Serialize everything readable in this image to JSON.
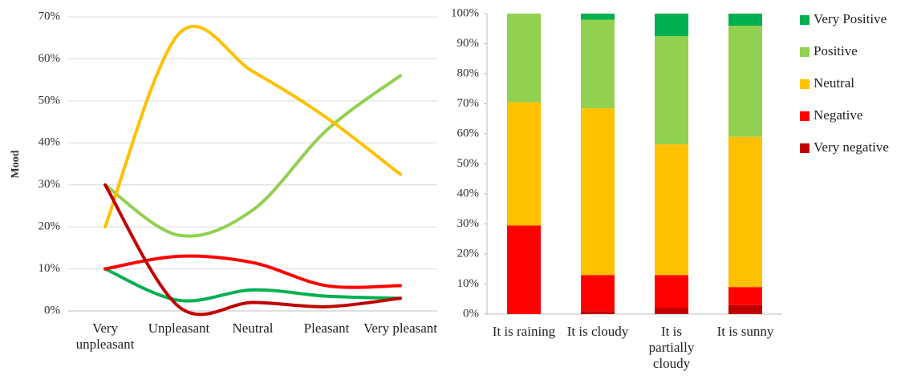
{
  "chart_data": [
    {
      "type": "line",
      "ylabel": "Mood",
      "categories": [
        "Very unpleasant",
        "Unpleasant",
        "Neutral",
        "Pleasant",
        "Very pleasant"
      ],
      "series": [
        {
          "color": "#00B050",
          "values": [
            10,
            2.5,
            5,
            3.5,
            3
          ]
        },
        {
          "color": "#92D050",
          "values": [
            30,
            18,
            24,
            43,
            56
          ]
        },
        {
          "color": "#FFC000",
          "values": [
            20,
            66,
            57,
            46,
            32.5
          ]
        },
        {
          "color": "#FF0000",
          "values": [
            10,
            13,
            11.5,
            6,
            6
          ]
        },
        {
          "color": "#C00000",
          "values": [
            30,
            1,
            2,
            1,
            3
          ]
        }
      ],
      "ylim": [
        0,
        70
      ],
      "yticks": [
        {
          "value": 0,
          "label": "0%"
        },
        {
          "value": 10,
          "label": "10%"
        },
        {
          "value": 20,
          "label": "20%"
        },
        {
          "value": 30,
          "label": "30%"
        },
        {
          "value": 40,
          "label": "40%"
        },
        {
          "value": 50,
          "label": "50%"
        },
        {
          "value": 60,
          "label": "60%"
        },
        {
          "value": 70,
          "label": "70%"
        }
      ],
      "grid": true
    },
    {
      "type": "bar",
      "stacked": true,
      "categories": [
        "It is raining",
        "It is cloudy",
        "It is partially cloudy",
        "It is sunny"
      ],
      "series": [
        {
          "name": "Very Positive",
          "color": "#00B050",
          "values": [
            0,
            2,
            7.5,
            4
          ]
        },
        {
          "name": "Positive",
          "color": "#92D050",
          "values": [
            29.5,
            29.5,
            36,
            37
          ]
        },
        {
          "name": "Neutral",
          "color": "#FFC000",
          "values": [
            41,
            55.5,
            43.5,
            50
          ]
        },
        {
          "name": "Negative",
          "color": "#FF0000",
          "values": [
            29.5,
            12,
            11,
            6
          ]
        },
        {
          "name": "Very negative",
          "color": "#C00000",
          "values": [
            0,
            1,
            2,
            3
          ]
        }
      ],
      "ylim": [
        0,
        100
      ],
      "yticks": [
        {
          "value": 0,
          "label": "0%"
        },
        {
          "value": 10,
          "label": "10%"
        },
        {
          "value": 20,
          "label": "20%"
        },
        {
          "value": 30,
          "label": "30%"
        },
        {
          "value": 40,
          "label": "40%"
        },
        {
          "value": 50,
          "label": "50%"
        },
        {
          "value": 60,
          "label": "60%"
        },
        {
          "value": 70,
          "label": "70%"
        },
        {
          "value": 80,
          "label": "80%"
        },
        {
          "value": 90,
          "label": "90%"
        },
        {
          "value": 100,
          "label": "100%"
        }
      ],
      "grid": false,
      "legend": "right"
    }
  ]
}
